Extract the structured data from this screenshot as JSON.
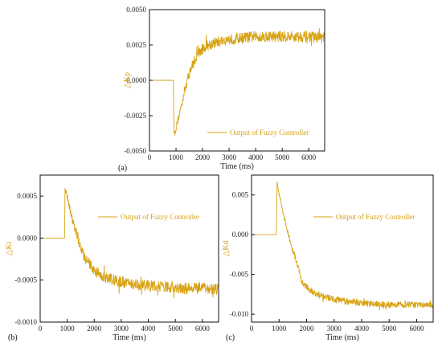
{
  "series_color": "#d8a314",
  "chart_data": [
    {
      "type": "line",
      "panel_label": "(a)",
      "xlabel": "Time (ms)",
      "ylabel": "△Kp",
      "legend": "Output of Fuzzy Controller",
      "legend_position": "bottom-right",
      "xlim": [
        0,
        6600
      ],
      "ylim": [
        -0.005,
        0.005
      ],
      "xticks": [
        "0",
        "1000",
        "2000",
        "3000",
        "4000",
        "5000",
        "6000"
      ],
      "yticks": [
        "-0.0050",
        "-0.0025",
        "0.0000",
        "0.0025",
        "0.0050"
      ],
      "series": [
        {
          "x": [
            0,
            900,
            920,
            960,
            1000,
            1100,
            1200,
            1300,
            1400,
            1500,
            1600,
            1700,
            1800,
            2000,
            2200,
            2500,
            2800,
            3000,
            3500,
            4000,
            4500,
            5000,
            5500,
            6000,
            6600
          ],
          "y": [
            0.0,
            0.0,
            -0.0035,
            -0.0038,
            -0.0034,
            -0.0026,
            -0.0018,
            -0.0009,
            -0.0002,
            0.0005,
            0.001,
            0.0014,
            0.0018,
            0.0022,
            0.0025,
            0.0027,
            0.0028,
            0.0029,
            0.003,
            0.0031,
            0.0031,
            0.0031,
            0.0031,
            0.0031,
            0.003
          ],
          "noise": 0.0004
        }
      ]
    },
    {
      "type": "line",
      "panel_label": "(b)",
      "xlabel": "Time (ms)",
      "ylabel": "△Ki",
      "legend": "Output of Fuzzy Controller",
      "legend_position": "top-right",
      "xlim": [
        0,
        6600
      ],
      "ylim": [
        -0.001,
        0.00075
      ],
      "xticks": [
        "0",
        "1000",
        "2000",
        "3000",
        "4000",
        "5000",
        "6000"
      ],
      "yticks": [
        "-0.0010",
        "-0.0005",
        "0.0000",
        "0.0005"
      ],
      "series": [
        {
          "x": [
            0,
            900,
            920,
            1000,
            1100,
            1200,
            1300,
            1400,
            1500,
            1600,
            1700,
            1800,
            2000,
            2200,
            2500,
            3000,
            3500,
            4000,
            4500,
            5000,
            5500,
            6000,
            6600
          ],
          "y": [
            0.0,
            0.0,
            0.0006,
            0.0005,
            0.00035,
            0.0002,
            0.0001,
            0.0,
            -0.0001,
            -0.0002,
            -0.00026,
            -0.0003,
            -0.00038,
            -0.00043,
            -0.00048,
            -0.00052,
            -0.00055,
            -0.00057,
            -0.00058,
            -0.00059,
            -0.0006,
            -0.0006,
            -0.0006
          ],
          "noise": 7e-05
        }
      ]
    },
    {
      "type": "line",
      "panel_label": "(c)",
      "xlabel": "Time (ms)",
      "ylabel": "△Kd",
      "legend": "Output of Fuzzy Controller",
      "legend_position": "top-right",
      "xlim": [
        0,
        6600
      ],
      "ylim": [
        -0.011,
        0.0075
      ],
      "xticks": [
        "0",
        "1000",
        "2000",
        "3000",
        "4000",
        "5000",
        "6000"
      ],
      "yticks": [
        "-0.010",
        "-0.005",
        "0.000",
        "0.005"
      ],
      "series": [
        {
          "x": [
            0,
            900,
            930,
            1000,
            1100,
            1200,
            1300,
            1400,
            1500,
            1600,
            1700,
            1800,
            2000,
            2200,
            2500,
            3000,
            3500,
            4000,
            4500,
            5000,
            5500,
            6000,
            6600
          ],
          "y": [
            0.0,
            0.0,
            0.0065,
            0.0052,
            0.0035,
            0.002,
            0.0006,
            -0.0008,
            -0.002,
            -0.003,
            -0.0042,
            -0.0058,
            -0.0066,
            -0.0072,
            -0.0077,
            -0.0081,
            -0.0084,
            -0.0086,
            -0.0087,
            -0.0088,
            -0.0088,
            -0.0088,
            -0.0088
          ],
          "noise": 0.0004
        }
      ]
    }
  ]
}
